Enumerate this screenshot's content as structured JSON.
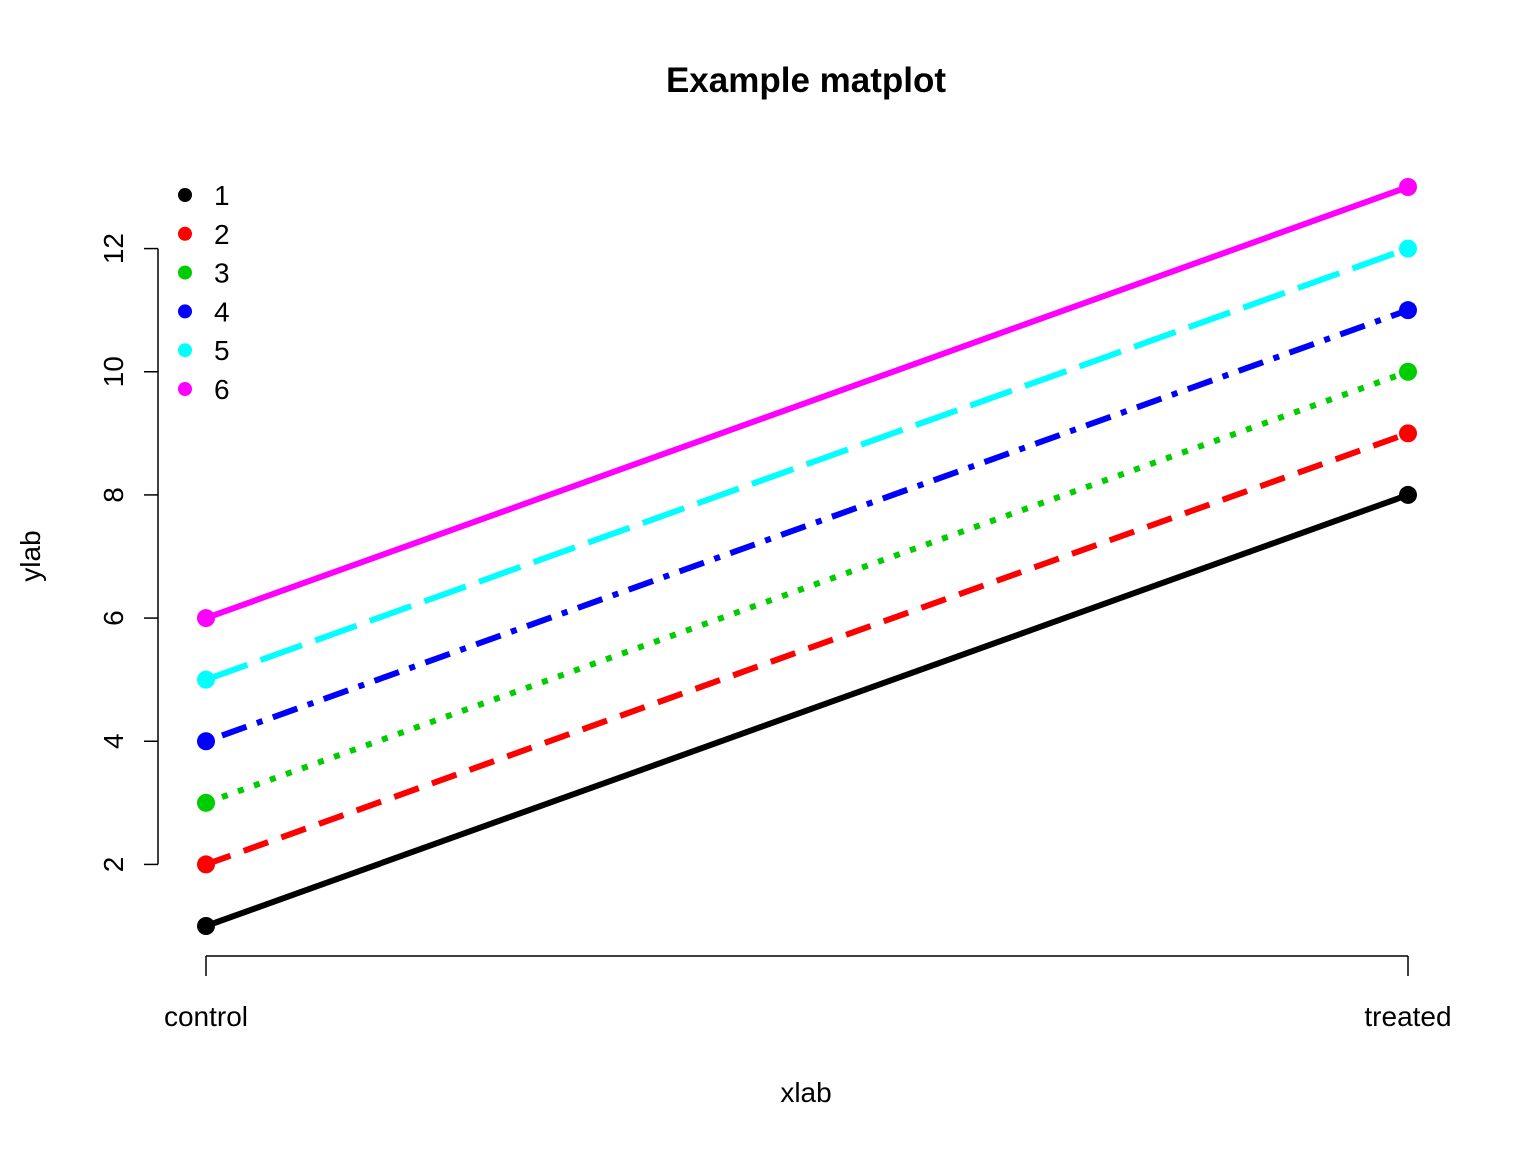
{
  "chart_data": {
    "type": "line",
    "title": "Example matplot",
    "xlabel": "xlab",
    "ylabel": "ylab",
    "categories": [
      "control",
      "treated"
    ],
    "ylim": [
      1,
      13
    ],
    "yticks": [
      2,
      4,
      6,
      8,
      10,
      12
    ],
    "legend_position": "top-left",
    "grid": false,
    "series": [
      {
        "name": "1",
        "values": [
          1,
          8
        ],
        "color": "#000000",
        "line_style": "solid"
      },
      {
        "name": "2",
        "values": [
          2,
          9
        ],
        "color": "#ff0000",
        "line_style": "dashed"
      },
      {
        "name": "3",
        "values": [
          3,
          10
        ],
        "color": "#00cd00",
        "line_style": "dotted"
      },
      {
        "name": "4",
        "values": [
          4,
          11
        ],
        "color": "#0000ff",
        "line_style": "dotdash"
      },
      {
        "name": "5",
        "values": [
          5,
          12
        ],
        "color": "#00ffff",
        "line_style": "longdash"
      },
      {
        "name": "6",
        "values": [
          6,
          13
        ],
        "color": "#ff00ff",
        "line_style": "solid"
      }
    ]
  }
}
